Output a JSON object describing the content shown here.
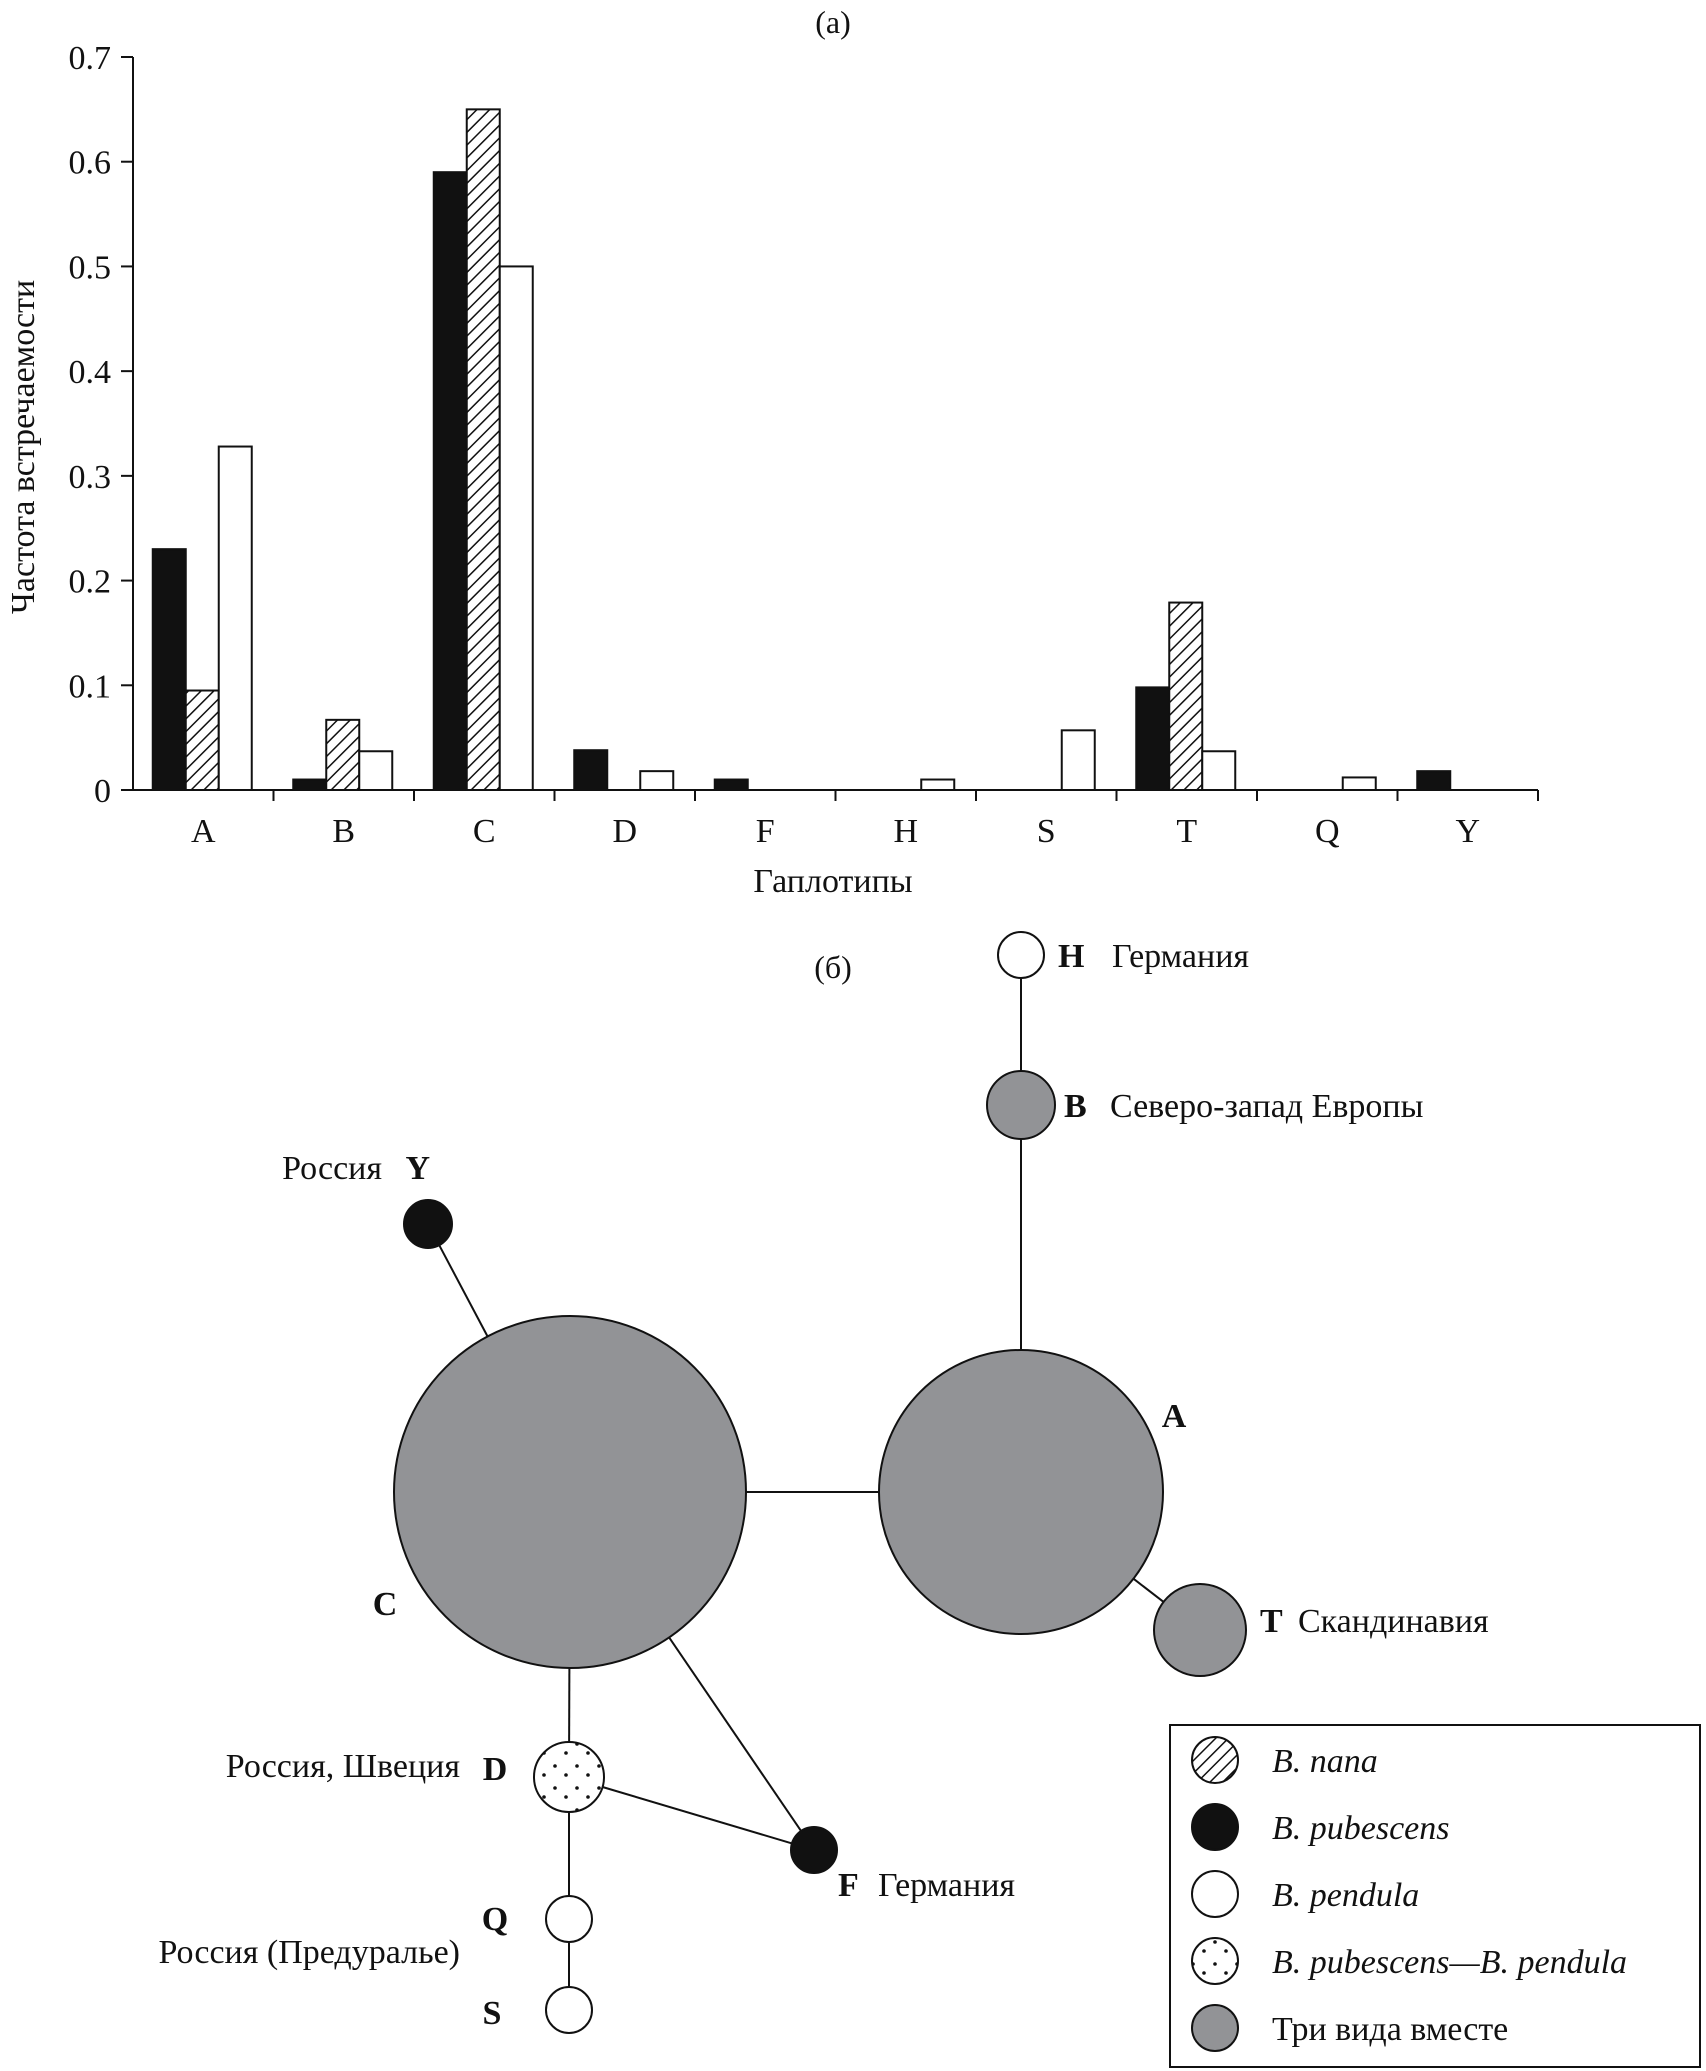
{
  "chart_data": [
    {
      "type": "bar",
      "panel_label": "(а)",
      "title": "",
      "xlabel": "Гаплотипы",
      "ylabel": "Частота встречаемости",
      "ylim": [
        0,
        0.7
      ],
      "yticks": [
        "0",
        "0.1",
        "0.2",
        "0.3",
        "0.4",
        "0.5",
        "0.6",
        "0.7"
      ],
      "categories": [
        "A",
        "B",
        "C",
        "D",
        "F",
        "H",
        "S",
        "T",
        "Q",
        "Y"
      ],
      "series": [
        {
          "name": "B. pubescens",
          "fill": "solid-black",
          "values": [
            0.23,
            0.01,
            0.59,
            0.038,
            0.01,
            0,
            0,
            0.098,
            0,
            0.018
          ]
        },
        {
          "name": "B. nana",
          "fill": "hatched",
          "values": [
            0.095,
            0.067,
            0.65,
            0,
            0,
            0,
            0,
            0.179,
            0,
            0
          ]
        },
        {
          "name": "B. pendula",
          "fill": "white",
          "values": [
            0.328,
            0.037,
            0.5,
            0.018,
            0,
            0.01,
            0.057,
            0.037,
            0.012,
            0
          ]
        }
      ],
      "grid": false
    },
    {
      "type": "network",
      "panel_label": "(б)",
      "nodes": [
        {
          "id": "H",
          "code": "H",
          "label": "Германия",
          "group": "B. pendula"
        },
        {
          "id": "B",
          "code": "B",
          "label": "Северо-запад Европы",
          "group": "Три вида вместе"
        },
        {
          "id": "Y",
          "code": "Y",
          "label": "Россия",
          "group": "B. pubescens"
        },
        {
          "id": "C",
          "code": "C",
          "label": "",
          "group": "Три вида вместе"
        },
        {
          "id": "A",
          "code": "A",
          "label": "",
          "group": "Три вида вместе"
        },
        {
          "id": "T",
          "code": "T",
          "label": "Скандинавия",
          "group": "Три вида вместе"
        },
        {
          "id": "D",
          "code": "D",
          "label": "Россия, Швеция",
          "group": "B. pubescens—B. pendula"
        },
        {
          "id": "F",
          "code": "F",
          "label": "Германия",
          "group": "B. pubescens"
        },
        {
          "id": "Q",
          "code": "Q",
          "label": "Россия (Предуралье)",
          "group": "B. pendula"
        },
        {
          "id": "S",
          "code": "S",
          "label": "",
          "group": "B. pendula"
        }
      ],
      "edges": [
        [
          "H",
          "B"
        ],
        [
          "B",
          "A"
        ],
        [
          "A",
          "C"
        ],
        [
          "A",
          "T"
        ],
        [
          "Y",
          "C"
        ],
        [
          "C",
          "D"
        ],
        [
          "C",
          "F"
        ],
        [
          "D",
          "F"
        ],
        [
          "D",
          "Q"
        ],
        [
          "Q",
          "S"
        ]
      ]
    }
  ],
  "legend": [
    {
      "symbol": "hatched",
      "label": "B. nana",
      "italic": true
    },
    {
      "symbol": "black",
      "label": "B. pubescens",
      "italic": true
    },
    {
      "symbol": "white",
      "label": "B. pendula",
      "italic": true
    },
    {
      "symbol": "dotted",
      "label": "B. pubescens—B. pendula",
      "italic": true
    },
    {
      "symbol": "gray",
      "label": "Три вида вместе",
      "italic": false
    }
  ],
  "colors": {
    "black": "#111111",
    "gray": "#929396",
    "white": "#ffffff"
  }
}
